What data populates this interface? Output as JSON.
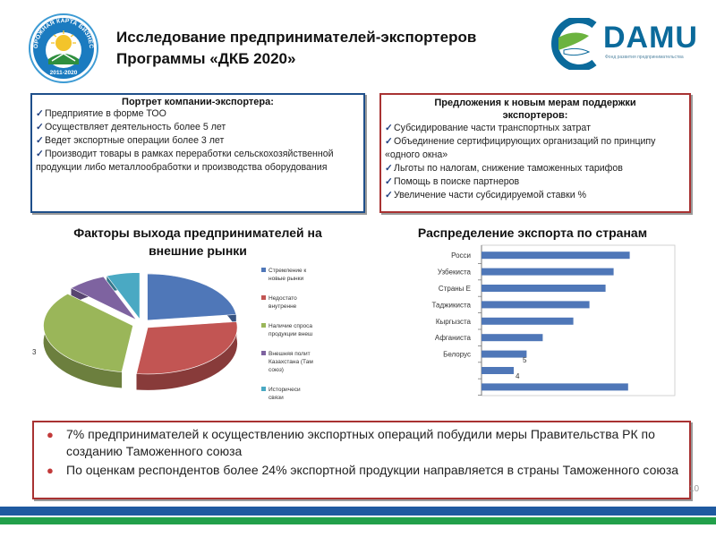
{
  "header": {
    "title_line1": "Исследование предпринимателей-экспортеров",
    "title_line2": "Программы «ДКБ 2020»",
    "left_logo": {
      "top_text": "ДОРОЖНАЯ КАРТА БИЗНЕСА",
      "years": "2011-2020"
    },
    "right_logo": {
      "name": "DAMU",
      "subtitle": "Фонд развития предпринимательства"
    }
  },
  "portrait_box": {
    "title": "Портрет компании-экспортера:",
    "items": [
      "Предприятие в форме ТОО",
      "Осуществляет деятельность более 5 лет",
      "Ведет экспортные операции более 3 лет",
      "Производит товары в рамках переработки сельскохозяйственной продукции либо металлообработки и производства оборудования"
    ]
  },
  "support_box": {
    "title_line1": "Предложения к новым мерам поддержки",
    "title_line2": "экспортеров:",
    "items": [
      "Субсидирование части транспортных затрат",
      "Объединение сертифицирующих организаций по принципу «одного окна»",
      "Льготы по налогам, снижение таможенных тарифов",
      "Помощь в поиске партнеров",
      "Увеличение части субсидируемой ставки %"
    ]
  },
  "pie_chart_title_line1": "Факторы выхода предпринимателей на",
  "pie_chart_title_line2": "внешние рынки",
  "bar_chart_title": "Распределение экспорта по странам",
  "pie_outer_label": "3",
  "bar_value_labels": [
    "5",
    "4"
  ],
  "chart_data": [
    {
      "type": "pie",
      "legend_placement": "right",
      "legend": [
        "Стремление к\nновые рынки",
        "Недостато\nвнутренне",
        "Наличие спроса\nпродукции внеш",
        "Внешняя полит\nКазахстана (Там\nсоюз)",
        "Историчеси\nсвязи"
      ],
      "values": [
        23,
        29,
        35,
        7,
        6
      ],
      "colors": [
        "#4f77b8",
        "#c25553",
        "#9ab659",
        "#7e63a0",
        "#4aa9c3"
      ]
    },
    {
      "type": "bar",
      "orientation": "horizontal",
      "categories": [
        "Росси",
        "Узбекиста",
        "Страны Е",
        "Таджикиста",
        "Кыргызста",
        "Афганиста",
        "Белорус",
        "",
        ""
      ],
      "values": [
        92,
        82,
        77,
        67,
        57,
        38,
        28,
        20,
        91
      ],
      "xlim": [
        0,
        120
      ],
      "color": "#4f77b8",
      "grid": false
    }
  ],
  "bottom_box": {
    "items": [
      "7% предпринимателей к осуществлению экспортных операций побудили меры Правительства РК по созданию Таможенного союза",
      "По оценкам респондентов более 24% экспортной продукции направляется в страны Таможенного союза"
    ]
  },
  "page_number": "10",
  "colors": {
    "box_red_border": "#a83232",
    "box_blue_border": "#1f4f8a",
    "stripe_blue": "#1f5aa0",
    "stripe_green": "#22a04a",
    "bar_color": "#4f77b8"
  }
}
